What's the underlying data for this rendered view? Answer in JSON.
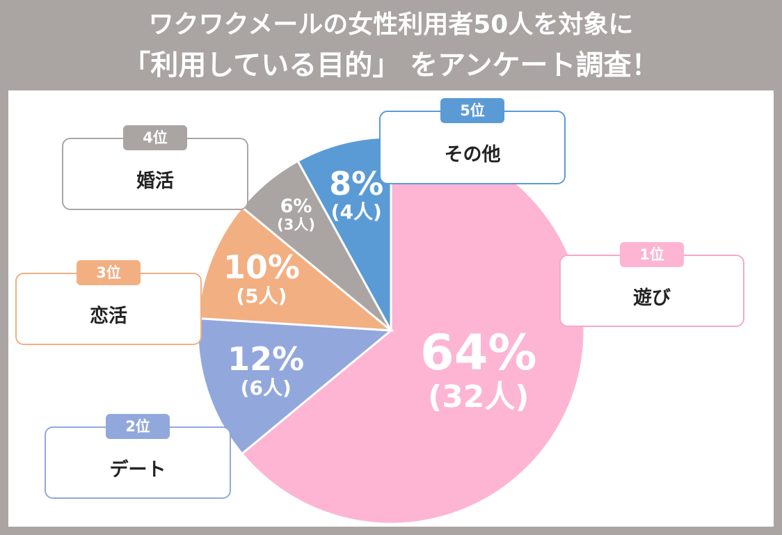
{
  "header": {
    "line1": "ワクワクメールの女性利用者50人を対象に",
    "line2": "「利用している目的」 をアンケート調査！"
  },
  "chart_data": {
    "type": "pie",
    "title": "ワクワクメールの女性利用者50人を対象に「利用している目的」 をアンケート調査！",
    "slices": [
      {
        "rank": "1位",
        "category": "遊び",
        "percent_label": "64%",
        "count_label": "(32人)",
        "value": 64,
        "color": "#fdb5d3",
        "outline": "#f5a8c9"
      },
      {
        "rank": "2位",
        "category": "デート",
        "percent_label": "12%",
        "count_label": "(6人)",
        "value": 12,
        "color": "#92a8dc",
        "outline": "#92a8dc"
      },
      {
        "rank": "3位",
        "category": "恋活",
        "percent_label": "10%",
        "count_label": "(5人)",
        "value": 10,
        "color": "#f2af82",
        "outline": "#f2af82"
      },
      {
        "rank": "4位",
        "category": "婚活",
        "percent_label": "6%",
        "count_label": "(3人)",
        "value": 6,
        "color": "#aaa5a3",
        "outline": "#aaa5a3"
      },
      {
        "rank": "5位",
        "category": "その他",
        "percent_label": "8%",
        "count_label": "(4人)",
        "value": 8,
        "color": "#5a9bd6",
        "outline": "#5a9bd6"
      }
    ],
    "legend_position": "callout boxes around pie"
  }
}
